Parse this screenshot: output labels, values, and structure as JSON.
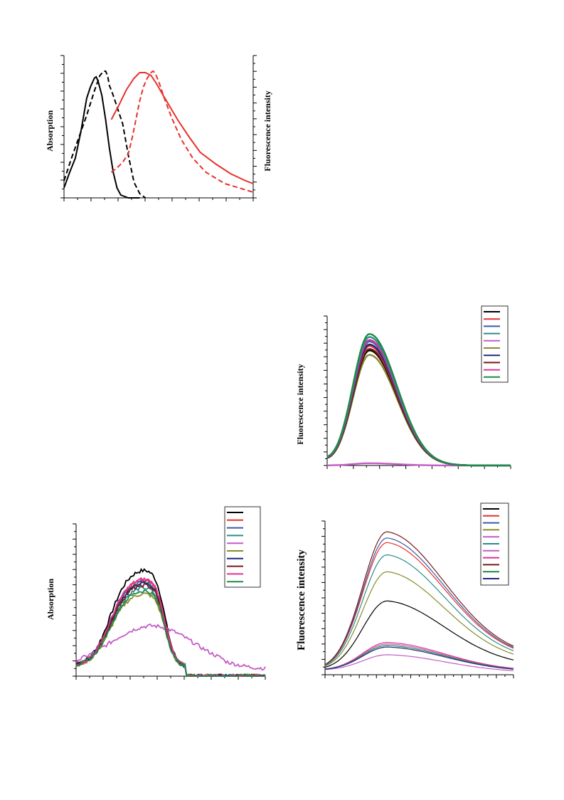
{
  "chart_data": [
    {
      "type": "line",
      "title": "",
      "xlabel": "",
      "ylabel": "Absorption",
      "y2label": "Fluorescence intensity",
      "xlim": [
        0,
        100
      ],
      "ylim": [
        0,
        1.0
      ],
      "series": [
        {
          "color": "#000000",
          "dash": "solid",
          "x": [
            0,
            3,
            6,
            9,
            12,
            14,
            16,
            17,
            18,
            20,
            22,
            24,
            26,
            28,
            30,
            34,
            40
          ],
          "y": [
            0.07,
            0.18,
            0.28,
            0.47,
            0.7,
            0.78,
            0.84,
            0.85,
            0.82,
            0.72,
            0.55,
            0.35,
            0.18,
            0.07,
            0.02,
            0.0,
            0.0
          ]
        },
        {
          "color": "#000000",
          "dash": "dash",
          "x": [
            0,
            4,
            8,
            12,
            16,
            19,
            21,
            22,
            23,
            24,
            26,
            28,
            31,
            34,
            37,
            40,
            43
          ],
          "y": [
            0.12,
            0.28,
            0.43,
            0.58,
            0.75,
            0.86,
            0.89,
            0.89,
            0.86,
            0.79,
            0.72,
            0.64,
            0.52,
            0.3,
            0.11,
            0.03,
            0.0
          ]
        },
        {
          "color": "#e8302c",
          "dash": "solid",
          "x": [
            25,
            29,
            33,
            37,
            40,
            43,
            46,
            49,
            52,
            56,
            60,
            66,
            72,
            80,
            88,
            96,
            100
          ],
          "y": [
            0.55,
            0.65,
            0.76,
            0.84,
            0.88,
            0.88,
            0.86,
            0.8,
            0.73,
            0.64,
            0.55,
            0.43,
            0.32,
            0.24,
            0.17,
            0.12,
            0.1
          ]
        },
        {
          "color": "#e8302c",
          "dash": "dash",
          "x": [
            25,
            28,
            31,
            34,
            36,
            38,
            40,
            42,
            44,
            46,
            47,
            48,
            50,
            53,
            57,
            62,
            68,
            75,
            85,
            95,
            100
          ],
          "y": [
            0.18,
            0.21,
            0.25,
            0.31,
            0.42,
            0.55,
            0.68,
            0.78,
            0.84,
            0.88,
            0.89,
            0.88,
            0.82,
            0.7,
            0.56,
            0.41,
            0.28,
            0.18,
            0.1,
            0.06,
            0.04
          ]
        }
      ]
    },
    {
      "type": "line",
      "title": "",
      "xlabel": "",
      "ylabel": "Fluorescence intensity",
      "xlim": [
        0,
        100
      ],
      "ylim": [
        0,
        1.0
      ],
      "legend": "top-right",
      "series": [
        {
          "color": "#000000",
          "peak": 0.77
        },
        {
          "color": "#e8302c",
          "peak": 0.8
        },
        {
          "color": "#3b5aa6",
          "peak": 0.83
        },
        {
          "color": "#2a8e8e",
          "peak": 0.86
        },
        {
          "color": "#c45cc7",
          "peak": 0.015
        },
        {
          "color": "#8a8a2a",
          "peak": 0.74
        },
        {
          "color": "#1f2a7a",
          "peak": 0.81
        },
        {
          "color": "#7a1a1a",
          "peak": 0.78
        },
        {
          "color": "#e0338f",
          "peak": 0.84
        },
        {
          "color": "#1f8a4a",
          "peak": 0.88
        }
      ]
    },
    {
      "type": "line",
      "title": "",
      "xlabel": "",
      "ylabel": "Absorption",
      "xlim": [
        0,
        100
      ],
      "ylim": [
        0,
        1.0
      ],
      "legend": "top-right",
      "series": [
        {
          "color": "#000000",
          "plateau": 0.72,
          "shift": 0
        },
        {
          "color": "#e8302c",
          "plateau": 0.65,
          "shift": 0
        },
        {
          "color": "#3b5aa6",
          "plateau": 0.64,
          "shift": 0
        },
        {
          "color": "#2a8e8e",
          "plateau": 0.6,
          "shift": 0
        },
        {
          "color": "#c45cc7",
          "plateau": 0.28,
          "shift": 1
        },
        {
          "color": "#8a8a2a",
          "plateau": 0.56,
          "shift": 0
        },
        {
          "color": "#1f2a7a",
          "plateau": 0.63,
          "shift": 0
        },
        {
          "color": "#7a1a1a",
          "plateau": 0.62,
          "shift": 0
        },
        {
          "color": "#e0338f",
          "plateau": 0.66,
          "shift": 0
        },
        {
          "color": "#1f8a4a",
          "plateau": 0.58,
          "shift": 0
        }
      ]
    },
    {
      "type": "line",
      "title": "",
      "xlabel": "",
      "ylabel": "Fluorescence intensity",
      "xlim": [
        0,
        100
      ],
      "ylim": [
        0,
        1.0
      ],
      "legend": "top-right",
      "series": [
        {
          "color": "#000000",
          "peak": 0.48
        },
        {
          "color": "#e8302c",
          "peak": 0.86
        },
        {
          "color": "#3b5aa6",
          "peak": 0.89
        },
        {
          "color": "#8a8a2a",
          "peak": 0.67
        },
        {
          "color": "#c45cc7",
          "peak": 0.13
        },
        {
          "color": "#2a8e8e",
          "peak": 0.78
        },
        {
          "color": "#c45cc7",
          "peak": 0.2
        },
        {
          "color": "#e0338f",
          "peak": 0.21
        },
        {
          "color": "#7a1a1a",
          "peak": 0.93
        },
        {
          "color": "#1f8a4a",
          "peak": 0.19
        },
        {
          "color": "#1f2a7a",
          "peak": 0.18
        }
      ]
    }
  ]
}
